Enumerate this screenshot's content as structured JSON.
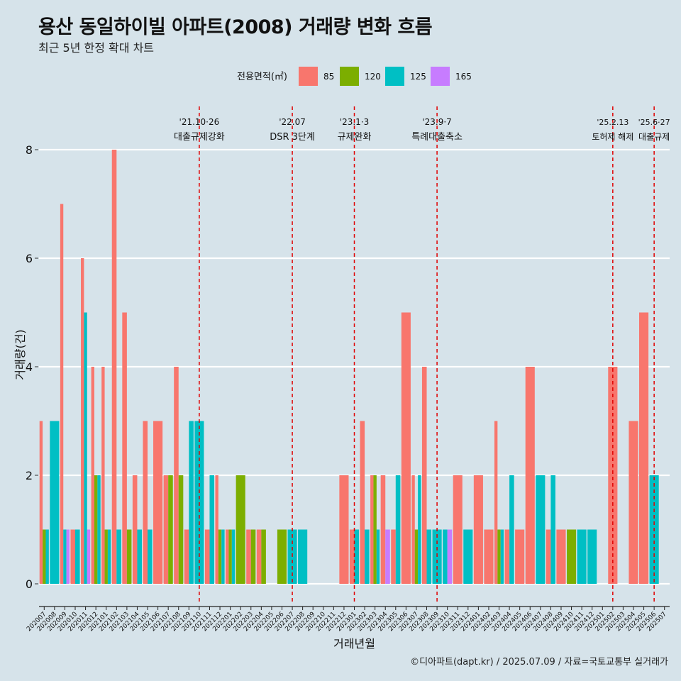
{
  "title": "용산 동일하이빌 아파트(2008) 거래량 변화 흐름",
  "subtitle": "최근 5년 한정 확대 차트",
  "caption": "©디아파트(dapt.kr) / 2025.07.09 / 자료=국토교통부 실거래가",
  "colors": {
    "85": "#f8766d",
    "120": "#7cae00",
    "125": "#00bfc4",
    "165": "#c77cff",
    "vline": "#e00000",
    "grid": "#ffffff",
    "bg": "#d6e3ea"
  },
  "chart_data": {
    "type": "bar",
    "xlabel": "거래년월",
    "ylabel": "거래량(건)",
    "ylim": [
      0,
      8
    ],
    "yticks": [
      0,
      2,
      4,
      6,
      8
    ],
    "legend": {
      "title": "전용면적(㎡)",
      "position": "top",
      "entries": [
        "85",
        "120",
        "125",
        "165"
      ]
    },
    "categories": [
      "202007",
      "202008",
      "202009",
      "202010",
      "202011",
      "202012",
      "202101",
      "202102",
      "202103",
      "202104",
      "202105",
      "202106",
      "202107",
      "202108",
      "202109",
      "202110",
      "202111",
      "202112",
      "202201",
      "202202",
      "202203",
      "202204",
      "202205",
      "202206",
      "202207",
      "202208",
      "202209",
      "202210",
      "202211",
      "202212",
      "202301",
      "202302",
      "202303",
      "202304",
      "202305",
      "202306",
      "202307",
      "202308",
      "202309",
      "202310",
      "202311",
      "202312",
      "202401",
      "202402",
      "202403",
      "202404",
      "202405",
      "202406",
      "202407",
      "202408",
      "202409",
      "202410",
      "202411",
      "202412",
      "202501",
      "202502",
      "202503",
      "202504",
      "202505",
      "202506",
      "202507"
    ],
    "series": [
      {
        "name": "85",
        "values": [
          3,
          0,
          7,
          1,
          6,
          4,
          4,
          8,
          5,
          2,
          3,
          3,
          2,
          4,
          1,
          0,
          1,
          2,
          1,
          0,
          1,
          1,
          0,
          0,
          0,
          0,
          0,
          0,
          0,
          2,
          1,
          3,
          2,
          2,
          1,
          5,
          2,
          4,
          0,
          0,
          2,
          0,
          2,
          1,
          3,
          1,
          1,
          4,
          0,
          1,
          1,
          0,
          0,
          0,
          0,
          4,
          0,
          3,
          5,
          0,
          0
        ]
      },
      {
        "name": "120",
        "values": [
          1,
          0,
          0,
          0,
          0,
          2,
          1,
          0,
          1,
          0,
          0,
          0,
          2,
          2,
          0,
          0,
          0,
          1,
          1,
          2,
          1,
          1,
          0,
          1,
          0,
          0,
          0,
          0,
          0,
          0,
          0,
          0,
          2,
          0,
          0,
          0,
          1,
          0,
          0,
          0,
          0,
          0,
          0,
          0,
          1,
          0,
          0,
          0,
          0,
          0,
          0,
          1,
          0,
          0,
          0,
          0,
          0,
          0,
          0,
          0,
          0
        ]
      },
      {
        "name": "125",
        "values": [
          1,
          3,
          1,
          1,
          5,
          2,
          1,
          1,
          0,
          1,
          1,
          0,
          0,
          0,
          3,
          3,
          2,
          1,
          1,
          0,
          0,
          0,
          0,
          0,
          1,
          1,
          0,
          0,
          0,
          0,
          1,
          1,
          1,
          0,
          2,
          0,
          2,
          1,
          1,
          1,
          0,
          1,
          0,
          0,
          1,
          2,
          0,
          0,
          2,
          2,
          0,
          0,
          1,
          1,
          0,
          0,
          0,
          0,
          0,
          2,
          0
        ]
      },
      {
        "name": "165",
        "values": [
          0,
          0,
          1,
          0,
          1,
          0,
          0,
          0,
          0,
          0,
          0,
          0,
          0,
          0,
          0,
          0,
          0,
          0,
          0,
          0,
          0,
          0,
          0,
          0,
          0,
          0,
          0,
          0,
          0,
          0,
          0,
          0,
          0,
          1,
          0,
          0,
          0,
          0,
          0,
          1,
          0,
          0,
          0,
          0,
          0,
          0,
          0,
          0,
          0,
          0,
          0,
          0,
          0,
          0,
          0,
          0,
          0,
          0,
          0,
          0,
          0
        ]
      }
    ],
    "annotations": [
      {
        "x": "202110",
        "date": "'21.10·26",
        "label": "대출규제강화"
      },
      {
        "x": "202207",
        "date": "'22.07",
        "label": "DSR 3단계"
      },
      {
        "x": "202301",
        "date": "'23.1·3",
        "label": "규제완화"
      },
      {
        "x": "202309",
        "date": "'23.9·7",
        "label": "특례대출축소"
      },
      {
        "x": "202502",
        "date": "'25.2.13",
        "label": "토허제 해제"
      },
      {
        "x": "202506",
        "date": "'25.6·27",
        "label": "대출규제"
      }
    ]
  }
}
